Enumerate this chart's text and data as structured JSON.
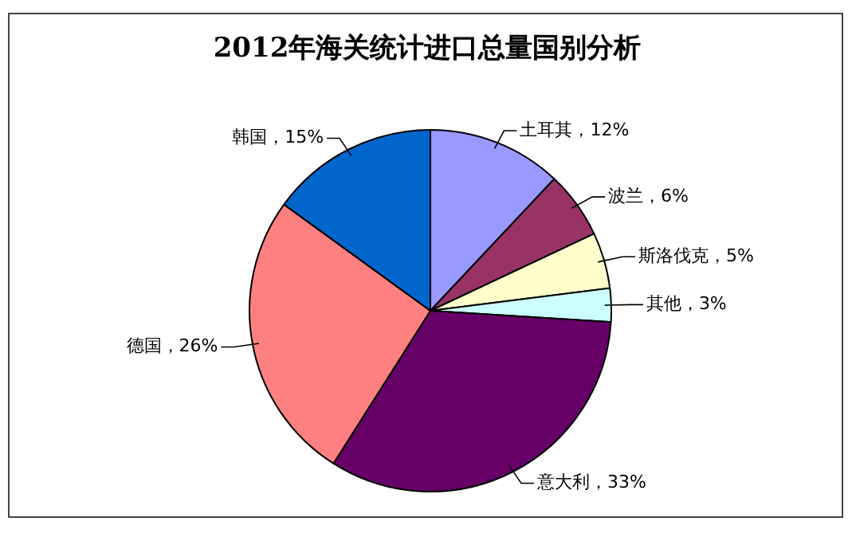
{
  "chart_data": {
    "type": "pie",
    "title": "2012年海关统计进口总量国别分析",
    "categories": [
      "土耳其",
      "波兰",
      "斯洛伐克",
      "其他",
      "意大利",
      "德国",
      "韩国"
    ],
    "values": [
      12,
      6,
      5,
      3,
      33,
      26,
      15
    ],
    "colors": [
      "#9999ff",
      "#993366",
      "#ffffcc",
      "#ccffff",
      "#660066",
      "#ff8080",
      "#0066cc"
    ],
    "value_labels": [
      "，12%",
      "，6%",
      "，5%",
      "，3%",
      "，33%",
      "，26%",
      "，15%"
    ],
    "legend": false
  }
}
